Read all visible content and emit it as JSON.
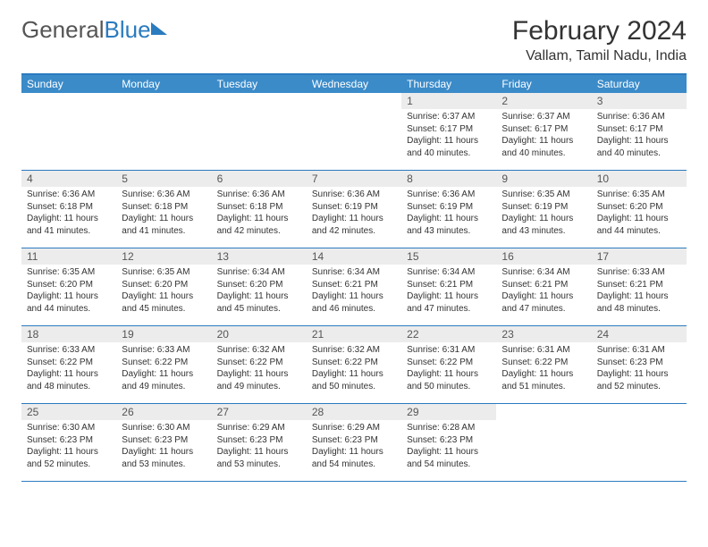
{
  "logo": {
    "text_gray": "General",
    "text_blue": "Blue"
  },
  "header": {
    "month_title": "February 2024",
    "location": "Vallam, Tamil Nadu, India"
  },
  "colors": {
    "header_bar": "#3b8bc9",
    "week_rule": "#2b7bbf",
    "daynum_bg": "#ececec",
    "text": "#333333"
  },
  "weekdays": [
    "Sunday",
    "Monday",
    "Tuesday",
    "Wednesday",
    "Thursday",
    "Friday",
    "Saturday"
  ],
  "first_weekday_index": 4,
  "days": [
    {
      "n": 1,
      "sunrise": "6:37 AM",
      "sunset": "6:17 PM",
      "daylight": "11 hours and 40 minutes."
    },
    {
      "n": 2,
      "sunrise": "6:37 AM",
      "sunset": "6:17 PM",
      "daylight": "11 hours and 40 minutes."
    },
    {
      "n": 3,
      "sunrise": "6:36 AM",
      "sunset": "6:17 PM",
      "daylight": "11 hours and 40 minutes."
    },
    {
      "n": 4,
      "sunrise": "6:36 AM",
      "sunset": "6:18 PM",
      "daylight": "11 hours and 41 minutes."
    },
    {
      "n": 5,
      "sunrise": "6:36 AM",
      "sunset": "6:18 PM",
      "daylight": "11 hours and 41 minutes."
    },
    {
      "n": 6,
      "sunrise": "6:36 AM",
      "sunset": "6:18 PM",
      "daylight": "11 hours and 42 minutes."
    },
    {
      "n": 7,
      "sunrise": "6:36 AM",
      "sunset": "6:19 PM",
      "daylight": "11 hours and 42 minutes."
    },
    {
      "n": 8,
      "sunrise": "6:36 AM",
      "sunset": "6:19 PM",
      "daylight": "11 hours and 43 minutes."
    },
    {
      "n": 9,
      "sunrise": "6:35 AM",
      "sunset": "6:19 PM",
      "daylight": "11 hours and 43 minutes."
    },
    {
      "n": 10,
      "sunrise": "6:35 AM",
      "sunset": "6:20 PM",
      "daylight": "11 hours and 44 minutes."
    },
    {
      "n": 11,
      "sunrise": "6:35 AM",
      "sunset": "6:20 PM",
      "daylight": "11 hours and 44 minutes."
    },
    {
      "n": 12,
      "sunrise": "6:35 AM",
      "sunset": "6:20 PM",
      "daylight": "11 hours and 45 minutes."
    },
    {
      "n": 13,
      "sunrise": "6:34 AM",
      "sunset": "6:20 PM",
      "daylight": "11 hours and 45 minutes."
    },
    {
      "n": 14,
      "sunrise": "6:34 AM",
      "sunset": "6:21 PM",
      "daylight": "11 hours and 46 minutes."
    },
    {
      "n": 15,
      "sunrise": "6:34 AM",
      "sunset": "6:21 PM",
      "daylight": "11 hours and 47 minutes."
    },
    {
      "n": 16,
      "sunrise": "6:34 AM",
      "sunset": "6:21 PM",
      "daylight": "11 hours and 47 minutes."
    },
    {
      "n": 17,
      "sunrise": "6:33 AM",
      "sunset": "6:21 PM",
      "daylight": "11 hours and 48 minutes."
    },
    {
      "n": 18,
      "sunrise": "6:33 AM",
      "sunset": "6:22 PM",
      "daylight": "11 hours and 48 minutes."
    },
    {
      "n": 19,
      "sunrise": "6:33 AM",
      "sunset": "6:22 PM",
      "daylight": "11 hours and 49 minutes."
    },
    {
      "n": 20,
      "sunrise": "6:32 AM",
      "sunset": "6:22 PM",
      "daylight": "11 hours and 49 minutes."
    },
    {
      "n": 21,
      "sunrise": "6:32 AM",
      "sunset": "6:22 PM",
      "daylight": "11 hours and 50 minutes."
    },
    {
      "n": 22,
      "sunrise": "6:31 AM",
      "sunset": "6:22 PM",
      "daylight": "11 hours and 50 minutes."
    },
    {
      "n": 23,
      "sunrise": "6:31 AM",
      "sunset": "6:22 PM",
      "daylight": "11 hours and 51 minutes."
    },
    {
      "n": 24,
      "sunrise": "6:31 AM",
      "sunset": "6:23 PM",
      "daylight": "11 hours and 52 minutes."
    },
    {
      "n": 25,
      "sunrise": "6:30 AM",
      "sunset": "6:23 PM",
      "daylight": "11 hours and 52 minutes."
    },
    {
      "n": 26,
      "sunrise": "6:30 AM",
      "sunset": "6:23 PM",
      "daylight": "11 hours and 53 minutes."
    },
    {
      "n": 27,
      "sunrise": "6:29 AM",
      "sunset": "6:23 PM",
      "daylight": "11 hours and 53 minutes."
    },
    {
      "n": 28,
      "sunrise": "6:29 AM",
      "sunset": "6:23 PM",
      "daylight": "11 hours and 54 minutes."
    },
    {
      "n": 29,
      "sunrise": "6:28 AM",
      "sunset": "6:23 PM",
      "daylight": "11 hours and 54 minutes."
    }
  ],
  "labels": {
    "sunrise": "Sunrise:",
    "sunset": "Sunset:",
    "daylight": "Daylight:"
  }
}
